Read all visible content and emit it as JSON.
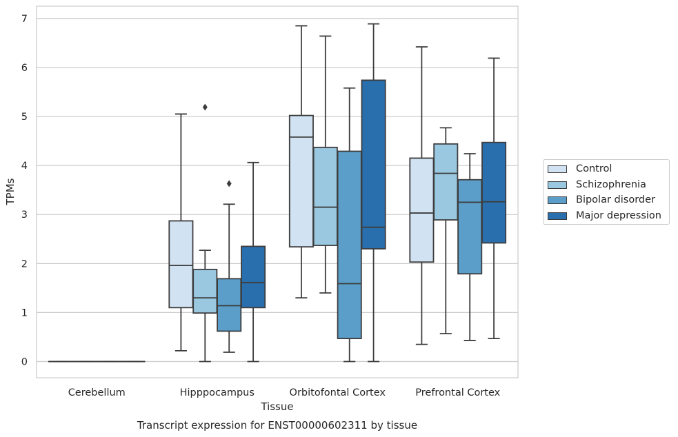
{
  "chart_data": {
    "type": "boxplot",
    "title": "Transcript expression for ENST00000602311 by tissue",
    "xlabel": "Tissue",
    "ylabel": "TPMs",
    "ylim": [
      -0.33,
      7.25
    ],
    "yticks": [
      0,
      1,
      2,
      3,
      4,
      5,
      6,
      7
    ],
    "grid": true,
    "legend_position": "right",
    "categories": [
      "Cerebellum",
      "Hipppocampus",
      "Orbitofontal Cortex",
      "Prefrontal Cortex"
    ],
    "series": [
      {
        "name": "Control",
        "color": "#d1e2f2",
        "boxes": [
          {
            "min": 0,
            "q1": 0,
            "median": 0,
            "q3": 0,
            "max": 0,
            "outliers": []
          },
          {
            "min": 0.22,
            "q1": 1.1,
            "median": 1.96,
            "q3": 2.87,
            "max": 5.05,
            "outliers": []
          },
          {
            "min": 1.3,
            "q1": 2.34,
            "median": 4.58,
            "q3": 5.02,
            "max": 6.85,
            "outliers": []
          },
          {
            "min": 0.35,
            "q1": 2.03,
            "median": 3.03,
            "q3": 4.15,
            "max": 6.42,
            "outliers": []
          }
        ]
      },
      {
        "name": "Schizophrenia",
        "color": "#9ac8e0",
        "boxes": [
          {
            "min": 0,
            "q1": 0,
            "median": 0,
            "q3": 0,
            "max": 0,
            "outliers": []
          },
          {
            "min": 0.0,
            "q1": 0.99,
            "median": 1.3,
            "q3": 1.88,
            "max": 2.27,
            "outliers": [
              5.19
            ]
          },
          {
            "min": 1.4,
            "q1": 2.37,
            "median": 3.15,
            "q3": 4.37,
            "max": 6.64,
            "outliers": []
          },
          {
            "min": 0.57,
            "q1": 2.89,
            "median": 3.84,
            "q3": 4.44,
            "max": 4.77,
            "outliers": []
          }
        ]
      },
      {
        "name": "Bipolar disorder",
        "color": "#5a9ec9",
        "boxes": [
          {
            "min": 0,
            "q1": 0,
            "median": 0,
            "q3": 0,
            "max": 0,
            "outliers": []
          },
          {
            "min": 0.19,
            "q1": 0.62,
            "median": 1.14,
            "q3": 1.69,
            "max": 3.21,
            "outliers": [
              3.63
            ]
          },
          {
            "min": 0.0,
            "q1": 0.47,
            "median": 1.59,
            "q3": 4.29,
            "max": 5.58,
            "outliers": []
          },
          {
            "min": 0.43,
            "q1": 1.79,
            "median": 3.25,
            "q3": 3.71,
            "max": 4.24,
            "outliers": []
          }
        ]
      },
      {
        "name": "Major depression",
        "color": "#2a6fad",
        "boxes": [
          {
            "min": 0,
            "q1": 0,
            "median": 0,
            "q3": 0,
            "max": 0,
            "outliers": []
          },
          {
            "min": 0.0,
            "q1": 1.1,
            "median": 1.61,
            "q3": 2.35,
            "max": 4.06,
            "outliers": []
          },
          {
            "min": 0.0,
            "q1": 2.3,
            "median": 2.74,
            "q3": 5.74,
            "max": 6.89,
            "outliers": []
          },
          {
            "min": 0.47,
            "q1": 2.42,
            "median": 3.26,
            "q3": 4.47,
            "max": 6.19,
            "outliers": []
          }
        ]
      }
    ]
  }
}
